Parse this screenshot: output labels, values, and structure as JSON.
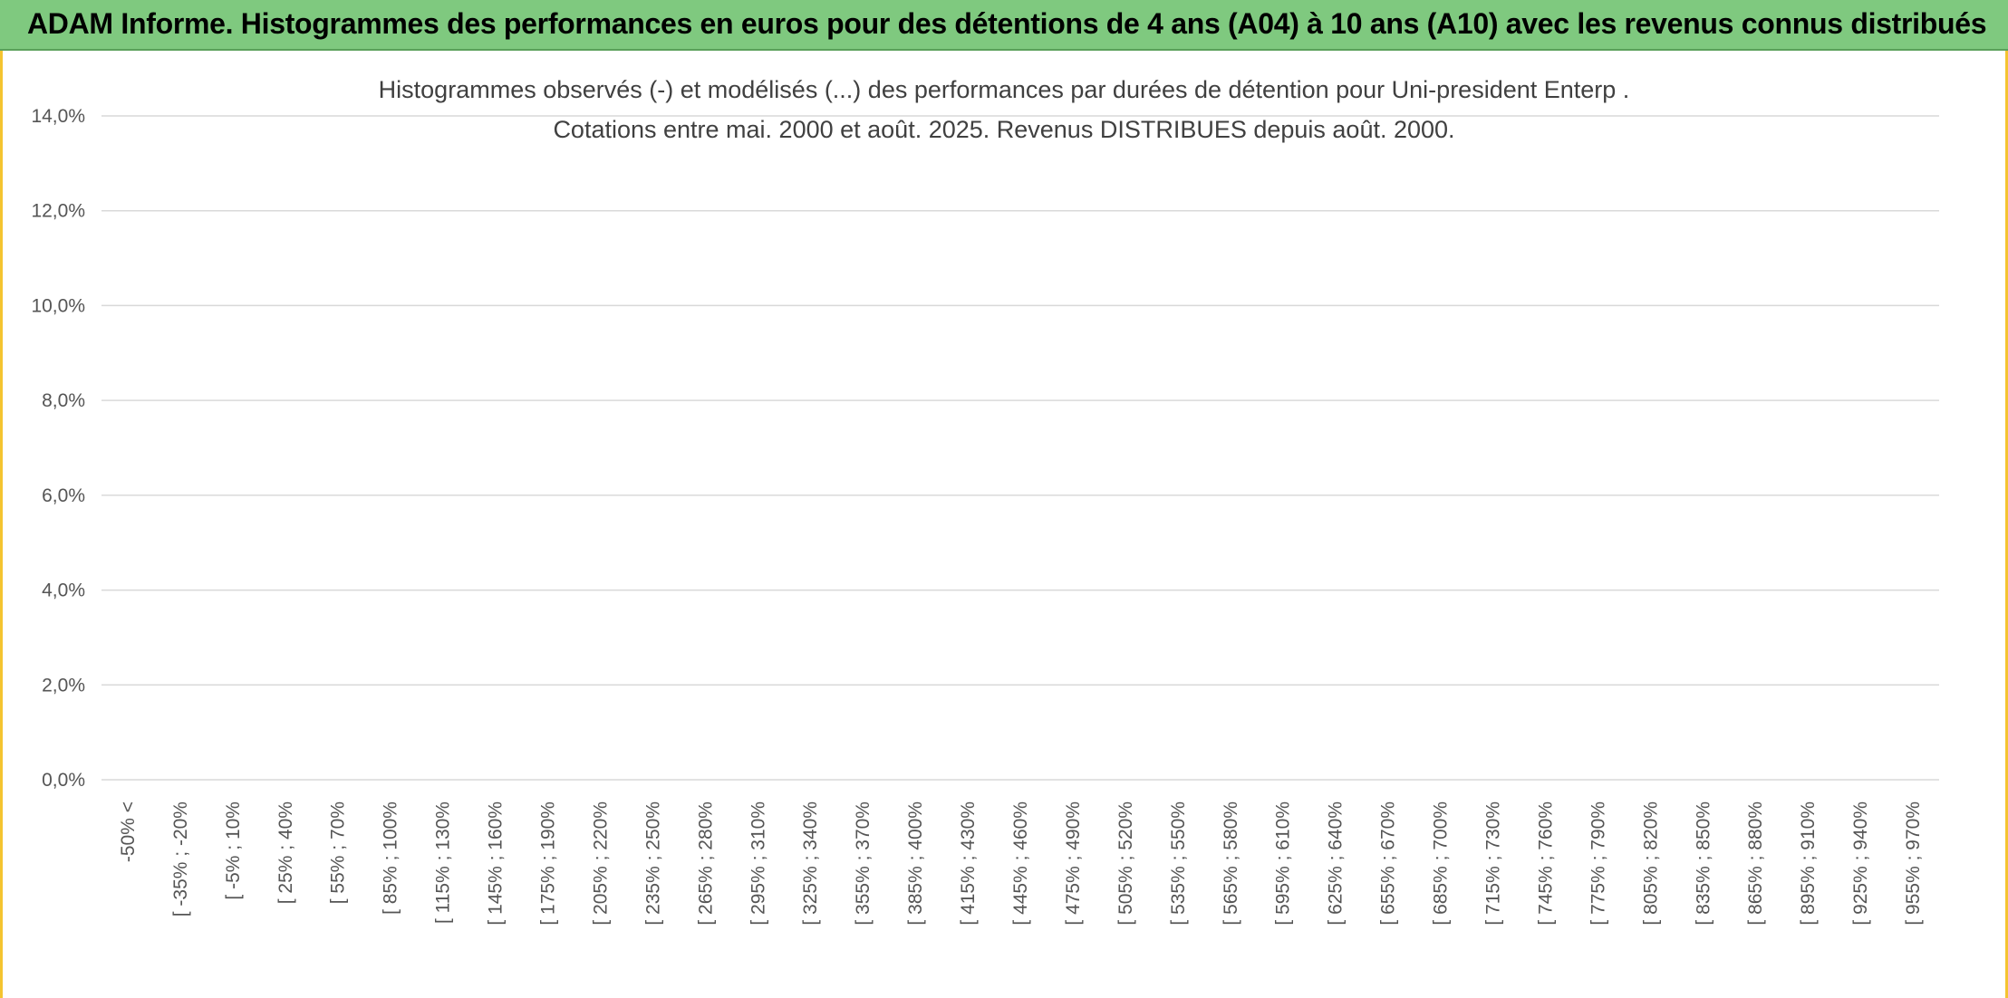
{
  "banner": {
    "title": "ADAM Informe. Histogrammes des performances en euros pour des détentions de 4 ans (A04) à 10 ans (A10) avec les revenus connus distribués"
  },
  "chart_data": {
    "type": "line",
    "title": "Histogrammes observés (-) et modélisés (...) des performances par durées de détention pour Uni-president Enterp .",
    "subtitle": "Cotations entre mai. 2000 et août. 2025. Revenus DISTRIBUES depuis août. 2000.",
    "xlabel": "",
    "ylabel": "",
    "ylim": [
      0,
      14
    ],
    "y_ticks": [
      "0,0%",
      "2,0%",
      "4,0%",
      "6,0%",
      "8,0%",
      "10,0%",
      "12,0%",
      "14,0%"
    ],
    "grid": true,
    "legend_position": "right",
    "categories": [
      "-50% <",
      "[ -35% ; -20%",
      "[ -5% ; 10%",
      "[ 25% ; 40%",
      "[ 55% ; 70%",
      "[ 85% ; 100%",
      "[ 115% ; 130%",
      "[ 145% ; 160%",
      "[ 175% ; 190%",
      "[ 205% ; 220%",
      "[ 235% ; 250%",
      "[ 265% ; 280%",
      "[ 295% ; 310%",
      "[ 325% ; 340%",
      "[ 355% ; 370%",
      "[ 385% ; 400%",
      "[ 415% ; 430%",
      "[ 445% ; 460%",
      "[ 475% ; 490%",
      "[ 505% ; 520%",
      "[ 535% ; 550%",
      "[ 565% ; 580%",
      "[ 595% ; 610%",
      "[ 625% ; 640%",
      "[ 655% ; 670%",
      "[ 685% ; 700%",
      "[ 715% ; 730%",
      "[ 745% ; 760%",
      "[ 775% ; 790%",
      "[ 805% ; 820%",
      "[ 835% ; 850%",
      "[ 865% ; 880%",
      "[ 895% ; 910%",
      "[ 925% ; 940%",
      "[ 955% ; 970%"
    ],
    "series": [],
    "colors": {}
  }
}
